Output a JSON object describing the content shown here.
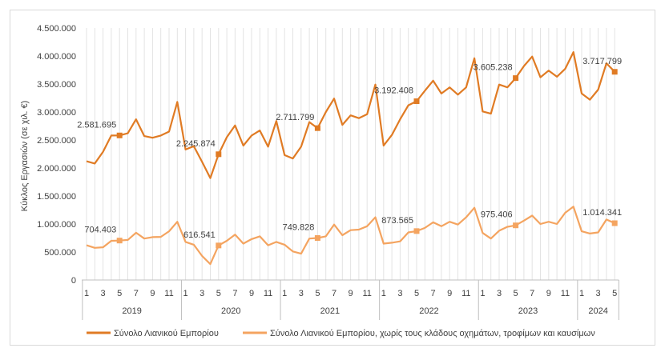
{
  "chart_data": {
    "type": "line",
    "ylabel": "Κύκλος Εργασιών (σε χιλ. €)",
    "ylim": [
      0,
      4500000
    ],
    "y_ticks": [
      "0",
      "500.000",
      "1.000.000",
      "1.500.000",
      "2.000.000",
      "2.500.000",
      "3.000.000",
      "3.500.000",
      "4.000.000",
      "4.500.000"
    ],
    "grid": "vertical lines at each month",
    "legend_position": "bottom",
    "month_tick_labels": [
      "1",
      "3",
      "5",
      "7",
      "9",
      "11",
      "1",
      "3",
      "5",
      "7",
      "9",
      "11",
      "1",
      "3",
      "5",
      "7",
      "9",
      "11",
      "1",
      "3",
      "5",
      "7",
      "9",
      "11",
      "1",
      "3",
      "5",
      "7",
      "9",
      "11",
      "1",
      "3",
      "5"
    ],
    "years": [
      "2019",
      "2020",
      "2021",
      "2022",
      "2023",
      "2024"
    ],
    "series": [
      {
        "name": "Σύνολο Λιανικού Εμπορίου",
        "color": "#E07B24",
        "values": [
          2120000,
          2080000,
          2290000,
          2580000,
          2581695,
          2620000,
          2870000,
          2570000,
          2540000,
          2580000,
          2650000,
          3180000,
          2330000,
          2390000,
          2110000,
          1820000,
          2245874,
          2550000,
          2760000,
          2400000,
          2580000,
          2670000,
          2380000,
          2840000,
          2230000,
          2170000,
          2380000,
          2820000,
          2711799,
          3000000,
          3240000,
          2770000,
          2940000,
          2890000,
          2960000,
          3490000,
          2400000,
          2590000,
          2870000,
          3120000,
          3192408,
          3380000,
          3560000,
          3330000,
          3440000,
          3310000,
          3440000,
          3960000,
          3010000,
          2970000,
          3490000,
          3440000,
          3605238,
          3820000,
          3990000,
          3620000,
          3740000,
          3630000,
          3770000,
          4070000,
          3330000,
          3220000,
          3400000,
          3870000,
          3717799
        ],
        "labels": [
          {
            "index": 4,
            "text": "2.581.695"
          },
          {
            "index": 16,
            "text": "2.245.874"
          },
          {
            "index": 28,
            "text": "2.711.799"
          },
          {
            "index": 40,
            "text": "3.192.408"
          },
          {
            "index": 52,
            "text": "3.605.238"
          },
          {
            "index": 64,
            "text": "3.717.799"
          }
        ]
      },
      {
        "name": "Σύνολο Λιανικού Εμπορίου, χωρίς τους κλάδους οχημάτων, τροφίμων και καυσίμων",
        "color": "#F4A460",
        "values": [
          620000,
          575000,
          585000,
          700000,
          704403,
          715000,
          845000,
          740000,
          765000,
          770000,
          870000,
          1040000,
          680000,
          630000,
          430000,
          285000,
          616541,
          700000,
          810000,
          650000,
          730000,
          780000,
          620000,
          680000,
          630000,
          510000,
          470000,
          740000,
          749828,
          780000,
          990000,
          800000,
          890000,
          900000,
          960000,
          1120000,
          650000,
          665000,
          690000,
          850000,
          873565,
          930000,
          1030000,
          960000,
          1040000,
          990000,
          1120000,
          1290000,
          840000,
          740000,
          880000,
          950000,
          975406,
          1060000,
          1150000,
          1000000,
          1040000,
          1000000,
          1200000,
          1310000,
          870000,
          830000,
          850000,
          1080000,
          1014341
        ],
        "labels": [
          {
            "index": 4,
            "text": "704.403"
          },
          {
            "index": 16,
            "text": "616.541"
          },
          {
            "index": 28,
            "text": "749.828"
          },
          {
            "index": 40,
            "text": "873.565"
          },
          {
            "index": 52,
            "text": "975.406"
          },
          {
            "index": 64,
            "text": "1.014.341"
          }
        ]
      }
    ]
  }
}
